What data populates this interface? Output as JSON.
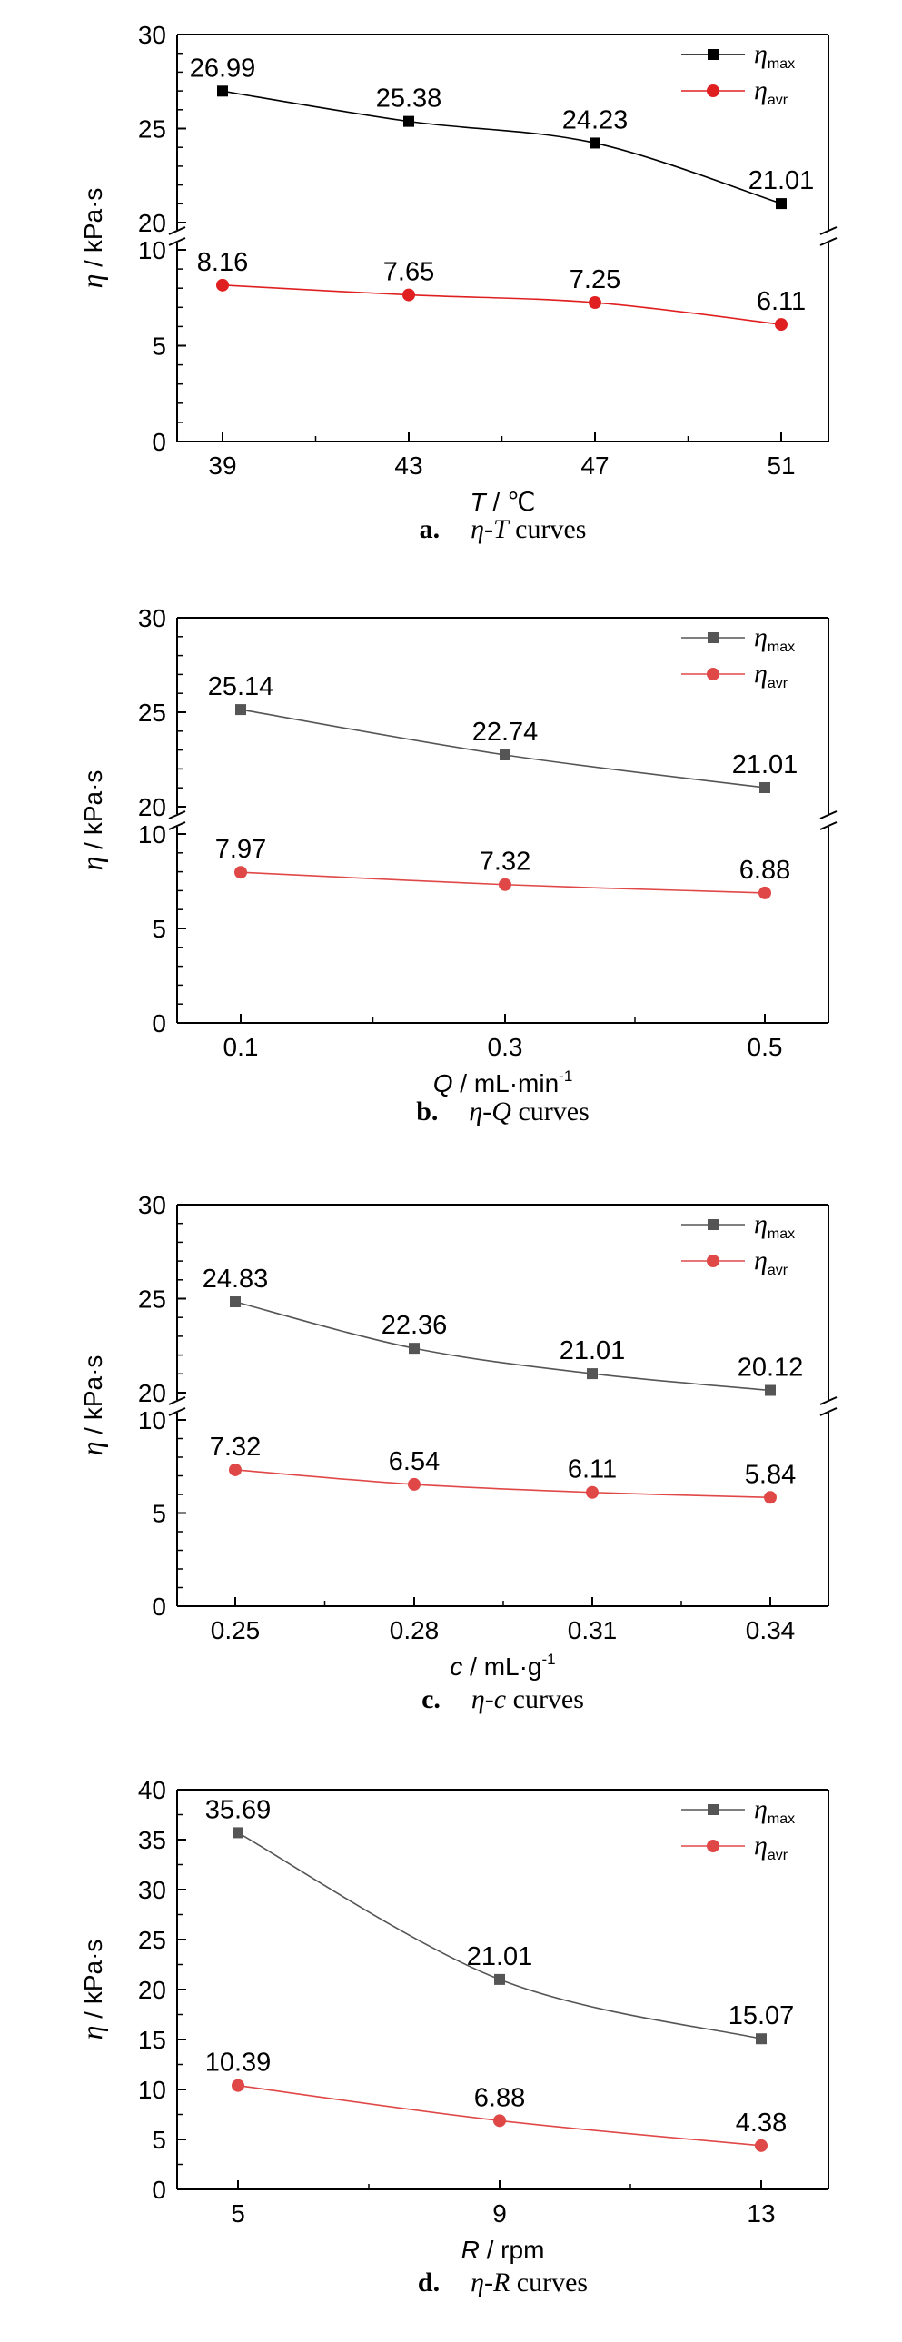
{
  "chart_data": [
    {
      "type": "line",
      "x_symbol": "T",
      "x_unit": " / ℃",
      "x_sup": "",
      "categories": [
        "39",
        "43",
        "47",
        "51"
      ],
      "y_symbol": "η",
      "y_unit": " / kPa·s",
      "y_break": true,
      "y_lower": {
        "range": [
          0,
          10
        ],
        "ticks": [
          "0",
          "5",
          "10"
        ]
      },
      "y_upper": {
        "range": [
          20,
          30
        ],
        "ticks": [
          "20",
          "25",
          "30"
        ]
      },
      "series": [
        {
          "name": "η",
          "sub": "max",
          "color": "#000000",
          "marker": "square",
          "values": [
            26.99,
            25.38,
            24.23,
            21.01
          ],
          "labels": [
            "26.99",
            "25.38",
            "24.23",
            "21.01"
          ]
        },
        {
          "name": "η",
          "sub": "avr",
          "color": "#e02020",
          "marker": "circle",
          "values": [
            8.16,
            7.65,
            7.25,
            6.11
          ],
          "labels": [
            "8.16",
            "7.65",
            "7.25",
            "6.11"
          ]
        }
      ],
      "caption": {
        "letter": "a.",
        "symbol": "η",
        "sep": "-",
        "var": "T",
        "text": " curves"
      },
      "legend": "top-right"
    },
    {
      "type": "line",
      "x_symbol": "Q",
      "x_unit": " / mL·min",
      "x_sup": "-1",
      "categories": [
        "0.1",
        "0.3",
        "0.5"
      ],
      "y_symbol": "η",
      "y_unit": " / kPa·s",
      "y_break": true,
      "y_lower": {
        "range": [
          0,
          10
        ],
        "ticks": [
          "0",
          "5",
          "10"
        ]
      },
      "y_upper": {
        "range": [
          20,
          30
        ],
        "ticks": [
          "20",
          "25",
          "30"
        ]
      },
      "series": [
        {
          "name": "η",
          "sub": "max",
          "color": "#555555",
          "marker": "square",
          "values": [
            25.14,
            22.74,
            21.01
          ],
          "labels": [
            "25.14",
            "22.74",
            "21.01"
          ]
        },
        {
          "name": "η",
          "sub": "avr",
          "color": "#e04848",
          "marker": "circle",
          "values": [
            7.97,
            7.32,
            6.88
          ],
          "labels": [
            "7.97",
            "7.32",
            "6.88"
          ]
        }
      ],
      "caption": {
        "letter": "b.",
        "symbol": "η",
        "sep": "-",
        "var": "Q",
        "text": " curves"
      },
      "legend": "top-right"
    },
    {
      "type": "line",
      "x_symbol": "c",
      "x_unit": " / mL·g",
      "x_sup": "-1",
      "categories": [
        "0.25",
        "0.28",
        "0.31",
        "0.34"
      ],
      "y_symbol": "η",
      "y_unit": " / kPa·s",
      "y_break": true,
      "y_lower": {
        "range": [
          0,
          10
        ],
        "ticks": [
          "0",
          "5",
          "10"
        ]
      },
      "y_upper": {
        "range": [
          20,
          30
        ],
        "ticks": [
          "20",
          "25",
          "30"
        ]
      },
      "series": [
        {
          "name": "η",
          "sub": "max",
          "color": "#555555",
          "marker": "square",
          "values": [
            24.83,
            22.36,
            21.01,
            20.12
          ],
          "labels": [
            "24.83",
            "22.36",
            "21.01",
            "20.12"
          ]
        },
        {
          "name": "η",
          "sub": "avr",
          "color": "#e04848",
          "marker": "circle",
          "values": [
            7.32,
            6.54,
            6.11,
            5.84
          ],
          "labels": [
            "7.32",
            "6.54",
            "6.11",
            "5.84"
          ]
        }
      ],
      "caption": {
        "letter": "c.",
        "symbol": "η",
        "sep": "-",
        "var": "c",
        "text": " curves"
      },
      "legend": "top-right"
    },
    {
      "type": "line",
      "x_symbol": "R",
      "x_unit": " / rpm",
      "x_sup": "",
      "categories": [
        "5",
        "9",
        "13"
      ],
      "y_symbol": "η",
      "y_unit": " / kPa·s",
      "y_break": false,
      "ylim": [
        0,
        40
      ],
      "yticks": [
        "0",
        "5",
        "10",
        "15",
        "20",
        "25",
        "30",
        "35",
        "40"
      ],
      "series": [
        {
          "name": "η",
          "sub": "max",
          "color": "#555555",
          "marker": "square",
          "values": [
            35.69,
            21.01,
            15.07
          ],
          "labels": [
            "35.69",
            "21.01",
            "15.07"
          ]
        },
        {
          "name": "η",
          "sub": "avr",
          "color": "#e04848",
          "marker": "circle",
          "values": [
            10.39,
            6.88,
            4.38
          ],
          "labels": [
            "10.39",
            "6.88",
            "4.38"
          ]
        }
      ],
      "caption": {
        "letter": "d.",
        "symbol": "η",
        "sep": "-",
        "var": "R",
        "text": " curves"
      },
      "legend": "top-right"
    }
  ]
}
